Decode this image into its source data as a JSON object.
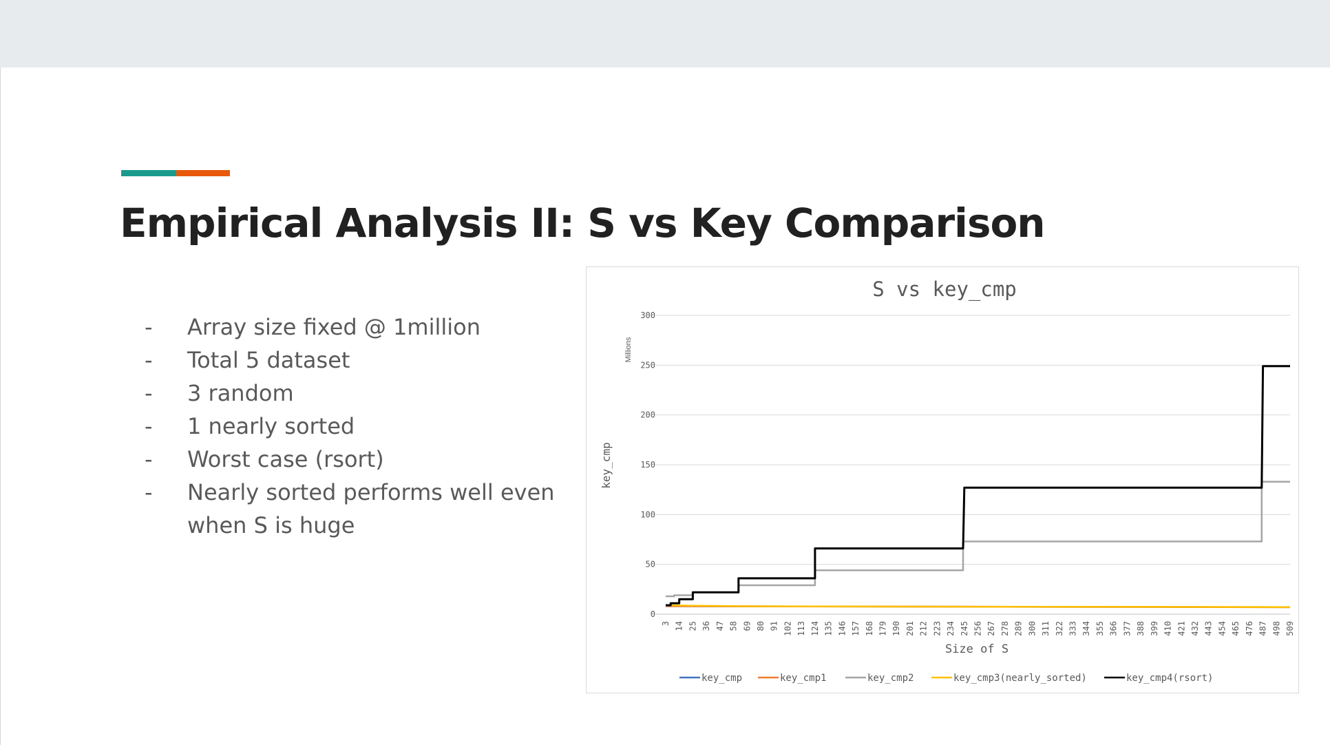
{
  "slide": {
    "title": "Empirical Analysis II: S vs Key Comparison",
    "accent_colors": [
      "#1a9a8e",
      "#e8590c"
    ],
    "bullets": [
      "Array size fixed @ 1million",
      "Total 5 dataset",
      "3 random",
      "1 nearly sorted",
      "Worst case (rsort)",
      "Nearly sorted performs well even when S is huge"
    ],
    "bullet_marker": "-"
  },
  "chart_data": {
    "type": "line",
    "title": "S vs key_cmp",
    "xlabel": "Size of S",
    "ylabel": "key_cmp",
    "y_unit_label": "Millions",
    "ylim": [
      0,
      300
    ],
    "yticks": [
      0,
      50,
      100,
      150,
      200,
      250,
      300
    ],
    "xlim": [
      3,
      509
    ],
    "xticks": [
      3,
      14,
      25,
      36,
      47,
      58,
      69,
      80,
      91,
      102,
      113,
      124,
      135,
      146,
      157,
      168,
      179,
      190,
      201,
      212,
      223,
      234,
      245,
      256,
      267,
      278,
      289,
      300,
      311,
      322,
      333,
      344,
      355,
      366,
      377,
      388,
      399,
      410,
      421,
      432,
      443,
      454,
      465,
      476,
      487,
      498,
      509
    ],
    "grid": true,
    "legend_position": "bottom",
    "series": [
      {
        "name": "key_cmp",
        "color": "#4472c4",
        "x": [
          3,
          509
        ],
        "y": [
          8,
          7
        ]
      },
      {
        "name": "key_cmp1",
        "color": "#ed7d31",
        "x": [
          3,
          509
        ],
        "y": [
          8,
          7
        ]
      },
      {
        "name": "key_cmp2",
        "color": "#a5a5a5",
        "x": [
          3,
          10,
          10,
          25,
          25,
          62,
          62,
          124,
          124,
          244,
          244,
          486,
          486,
          509
        ],
        "y": [
          18,
          18,
          19,
          19,
          22,
          22,
          29,
          29,
          44,
          44,
          73,
          73,
          133,
          133
        ]
      },
      {
        "name": "key_cmp3(nearly_sorted)",
        "color": "#ffc000",
        "x": [
          3,
          25,
          62,
          124,
          244,
          486,
          509
        ],
        "y": [
          9,
          8.5,
          8,
          7.8,
          7.5,
          7.2,
          7
        ]
      },
      {
        "name": "key_cmp4(rsort)",
        "color": "#000000",
        "x": [
          3,
          7,
          7,
          14,
          14,
          25,
          25,
          62,
          62,
          124,
          124,
          244,
          245,
          486,
          487,
          509
        ],
        "y": [
          9,
          9,
          11,
          11,
          15,
          15,
          22,
          22,
          36,
          36,
          66,
          66,
          127,
          127,
          249,
          249
        ]
      }
    ]
  }
}
